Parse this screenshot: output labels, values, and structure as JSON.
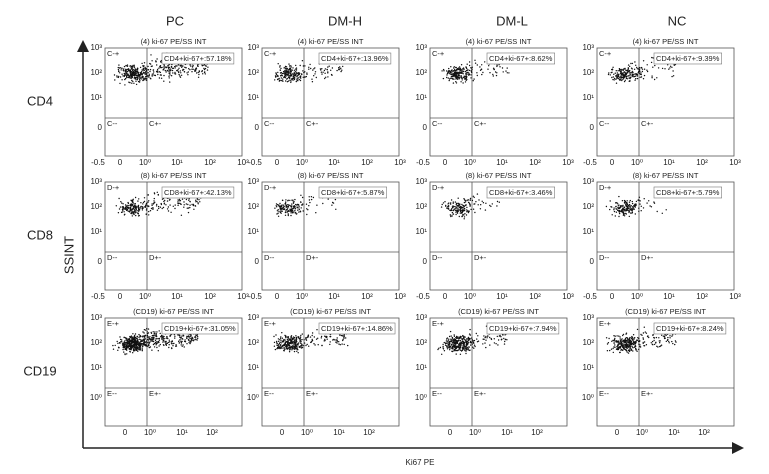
{
  "columns": [
    "PC",
    "DM-H",
    "DM-L",
    "NC"
  ],
  "y_axis_label": "SSINT",
  "x_axis_label": "Ki67 PE",
  "rows": [
    {
      "label": "CD4",
      "panel_title": "(4) ki-67 PE/SS INT",
      "quadrants": [
        "C-+",
        "C--",
        "C+-"
      ],
      "gates": [
        "CD4+ki-67+:57.18%",
        "CD4+ki-67+:13.96%",
        "CD4+ki-67+:8.62%",
        "CD4+ki-67+:9.39%"
      ],
      "yticks": [
        "10³",
        "10²",
        "10¹",
        "0"
      ],
      "xticks": [
        "-0.5",
        "0",
        "10⁰",
        "10¹",
        "10²",
        "10³"
      ]
    },
    {
      "label": "CD8",
      "panel_title": "(8) ki-67 PE/SS INT",
      "quadrants": [
        "D-+",
        "D--",
        "D+-"
      ],
      "gates": [
        "CD8+ki-67+:42.13%",
        "CD8+ki-67+:5.87%",
        "CD8+ki-67+:3.46%",
        "CD8+ki-67+:5.79%"
      ],
      "yticks": [
        "10³",
        "10²",
        "10¹",
        "0"
      ],
      "xticks": [
        "-0.5",
        "0",
        "10⁰",
        "10¹",
        "10²",
        "10³"
      ]
    },
    {
      "label": "CD19",
      "panel_title": "(CD19) ki-67 PE/SS INT",
      "quadrants": [
        "E-+",
        "E--",
        "E+-"
      ],
      "gates": [
        "CD19+ki-67+:31.05%",
        "CD19+ki-67+:14.86%",
        "CD19+ki-67+:7.94%",
        "CD19+ki-67+:8.24%"
      ],
      "yticks": [
        "10³",
        "10²",
        "10¹",
        "10⁰"
      ],
      "xticks": [
        "0",
        "10⁰",
        "10¹",
        "10²"
      ]
    }
  ]
}
